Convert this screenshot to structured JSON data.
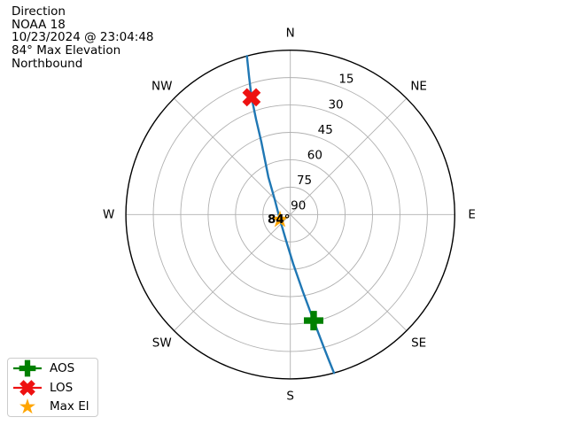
{
  "info": {
    "title": "Direction",
    "satellite": "NOAA 18",
    "datetime": "10/23/2024 @ 23:04:48",
    "max_elevation": "84° Max Elevation",
    "heading": "Northbound"
  },
  "legend": {
    "items": [
      {
        "label": "AOS",
        "marker": "plus-filled",
        "color": "#008000"
      },
      {
        "label": "LOS",
        "marker": "x-filled",
        "color": "#ee1111"
      },
      {
        "label": "Max El",
        "marker": "star",
        "color": "#ffa500"
      }
    ]
  },
  "chart_data": {
    "type": "line",
    "projection": "polar-sky-plot",
    "title": "Direction",
    "satellite": "NOAA 18",
    "pass_time": "10/23/2024 @ 23:04:48",
    "pass_heading": "Northbound",
    "max_elevation_deg": 84,
    "compass_labels": [
      "N",
      "NE",
      "E",
      "SE",
      "S",
      "SW",
      "W",
      "NW"
    ],
    "elevation_ticks_deg": [
      15,
      30,
      45,
      60,
      75,
      90
    ],
    "tick_label_azimuth_deg": 22.5,
    "elevation_range": [
      0,
      90
    ],
    "grid": true,
    "track": {
      "name": "satellite track (azimuth°, elevation°)",
      "azimuth_elevation_deg": [
        [
          164.6,
          0
        ],
        [
          165.2,
          7.9
        ],
        [
          165.9,
          15.7
        ],
        [
          167.6,
          30.5
        ],
        [
          170.7,
          46.9
        ],
        [
          176.6,
          62.9
        ],
        [
          189.0,
          75.4
        ],
        [
          244.0,
          83.7
        ],
        [
          314.3,
          78.0
        ],
        [
          329.7,
          66.2
        ],
        [
          338.3,
          47.0
        ],
        [
          340.2,
          34.7
        ],
        [
          341.7,
          22.4
        ],
        [
          343.3,
          11.5
        ],
        [
          344.7,
          0
        ]
      ]
    },
    "markers": [
      {
        "name": "AOS",
        "azimuth_deg": 167.6,
        "elevation_deg": 30.5,
        "marker": "plus-filled",
        "color": "#008000"
      },
      {
        "name": "LOS",
        "azimuth_deg": 341.7,
        "elevation_deg": 22.4,
        "marker": "x-filled",
        "color": "#ee1111"
      },
      {
        "name": "Max El",
        "azimuth_deg": 244.0,
        "elevation_deg": 83.7,
        "marker": "star",
        "color": "#ffa500",
        "annotation": "84°"
      }
    ],
    "colors": {
      "track": "#1f77b4",
      "grid": "#b0b0b0",
      "outline": "#000000",
      "text": "#000000"
    }
  }
}
